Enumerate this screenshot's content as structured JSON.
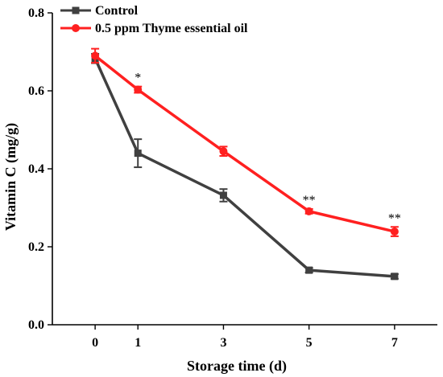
{
  "chart_data": {
    "type": "line",
    "title": "",
    "xlabel": "Storage time (d)",
    "ylabel": "Vitamin C (mg/g)",
    "x": [
      0,
      1,
      3,
      5,
      7
    ],
    "xticks": [
      "0",
      "1",
      "3",
      "5",
      "7"
    ],
    "yticks": [
      "0.0",
      "0.2",
      "0.4",
      "0.6",
      "0.8"
    ],
    "xlim": [
      -1,
      8
    ],
    "ylim": [
      0.0,
      0.8
    ],
    "grid": false,
    "legend_position": "top-left",
    "series": [
      {
        "name": "Control",
        "color": "#404040",
        "marker": "square",
        "values": [
          0.683,
          0.44,
          0.332,
          0.14,
          0.124
        ],
        "errors": [
          0.012,
          0.036,
          0.016,
          0.006,
          0.006
        ]
      },
      {
        "name": "0.5 ppm Thyme essential oil",
        "color": "#ff2020",
        "marker": "circle",
        "values": [
          0.69,
          0.603,
          0.445,
          0.291,
          0.239
        ],
        "errors": [
          0.018,
          0.008,
          0.012,
          0.006,
          0.012
        ]
      }
    ],
    "annotations": [
      {
        "x": 1,
        "text": "*"
      },
      {
        "x": 5,
        "text": "**"
      },
      {
        "x": 7,
        "text": "**"
      }
    ]
  }
}
